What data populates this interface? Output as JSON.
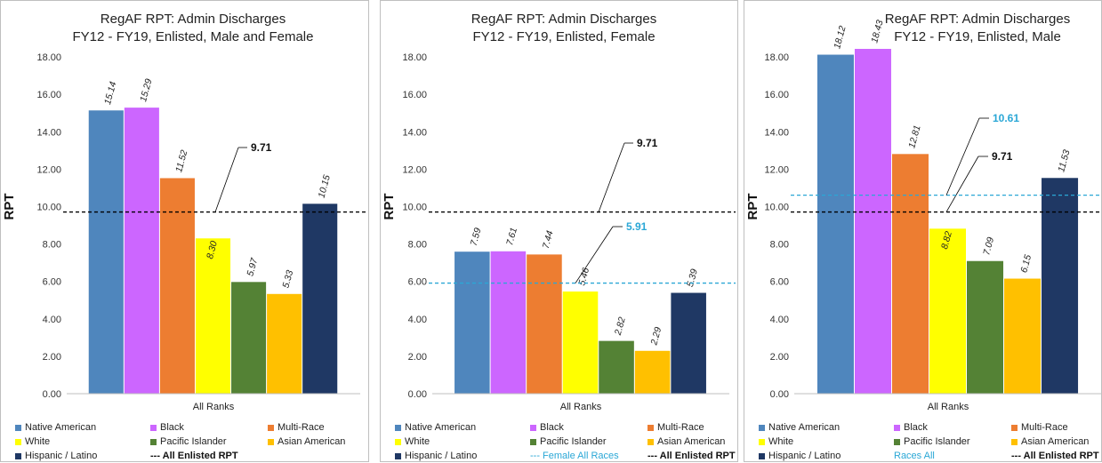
{
  "chart_data": [
    {
      "type": "bar",
      "title": [
        "RegAF RPT: Admin Discharges",
        "FY12 - FY19, Enlisted, Male and Female"
      ],
      "ylabel": "RPT",
      "xlabel": "All Ranks",
      "ylim": [
        0,
        19
      ],
      "yticks": [
        "0.00",
        "2.00",
        "4.00",
        "6.00",
        "8.00",
        "10.00",
        "12.00",
        "14.00",
        "16.00",
        "18.00"
      ],
      "series": [
        {
          "name": "Native American",
          "value": 15.14,
          "label": "15.14",
          "color": "#4f86bd"
        },
        {
          "name": "Black",
          "value": 15.29,
          "label": "15.29",
          "color": "#cc66ff"
        },
        {
          "name": "Multi-Race",
          "value": 11.52,
          "label": "11.52",
          "color": "#ed7d31"
        },
        {
          "name": "White",
          "value": 8.3,
          "label": "8.30",
          "color": "#ffff00"
        },
        {
          "name": "Pacific Islander",
          "value": 5.97,
          "label": "5.97",
          "color": "#548235"
        },
        {
          "name": "Asian American",
          "value": 5.33,
          "label": "5.33",
          "color": "#ffc000"
        },
        {
          "name": "Hispanic / Latino",
          "value": 10.15,
          "label": "10.15",
          "color": "#1f3864"
        }
      ],
      "reference_lines": [
        {
          "value": 9.71,
          "label": "9.71",
          "color": "#000000",
          "legend": "--- All Enlisted RPT"
        }
      ]
    },
    {
      "type": "bar",
      "title": [
        "RegAF RPT: Admin Discharges",
        "FY12 - FY19, Enlisted, Female"
      ],
      "ylabel": "RPT",
      "xlabel": "All Ranks",
      "ylim": [
        0,
        19
      ],
      "yticks": [
        "0.00",
        "2.00",
        "4.00",
        "6.00",
        "8.00",
        "10.00",
        "12.00",
        "14.00",
        "16.00",
        "18.00"
      ],
      "series": [
        {
          "name": "Native American",
          "value": 7.59,
          "label": "7.59",
          "color": "#4f86bd"
        },
        {
          "name": "Black",
          "value": 7.61,
          "label": "7.61",
          "color": "#cc66ff"
        },
        {
          "name": "Multi-Race",
          "value": 7.44,
          "label": "7.44",
          "color": "#ed7d31"
        },
        {
          "name": "White",
          "value": 5.46,
          "label": "5.46",
          "color": "#ffff00"
        },
        {
          "name": "Pacific Islander",
          "value": 2.82,
          "label": "2.82",
          "color": "#548235"
        },
        {
          "name": "Asian American",
          "value": 2.29,
          "label": "2.29",
          "color": "#ffc000"
        },
        {
          "name": "Hispanic / Latino",
          "value": 5.39,
          "label": "5.39",
          "color": "#1f3864"
        }
      ],
      "reference_lines": [
        {
          "value": 9.71,
          "label": "9.71",
          "color": "#000000",
          "legend": "--- All Enlisted RPT"
        },
        {
          "value": 5.91,
          "label": "5.91",
          "color": "#2aa7d6",
          "legend": "--- Female All Races"
        }
      ]
    },
    {
      "type": "bar",
      "title": [
        "RegAF RPT: Admin Discharges",
        "FY12 - FY19, Enlisted, Male"
      ],
      "ylabel": "RPT",
      "xlabel": "All Ranks",
      "ylim": [
        0,
        19
      ],
      "yticks": [
        "0.00",
        "2.00",
        "4.00",
        "6.00",
        "8.00",
        "10.00",
        "12.00",
        "14.00",
        "16.00",
        "18.00"
      ],
      "series": [
        {
          "name": "Native American",
          "value": 18.12,
          "label": "18.12",
          "color": "#4f86bd"
        },
        {
          "name": "Black",
          "value": 18.43,
          "label": "18.43",
          "color": "#cc66ff"
        },
        {
          "name": "Multi-Race",
          "value": 12.81,
          "label": "12.81",
          "color": "#ed7d31"
        },
        {
          "name": "White",
          "value": 8.82,
          "label": "8.82",
          "color": "#ffff00"
        },
        {
          "name": "Pacific Islander",
          "value": 7.09,
          "label": "7.09",
          "color": "#548235"
        },
        {
          "name": "Asian American",
          "value": 6.15,
          "label": "6.15",
          "color": "#ffc000"
        },
        {
          "name": "Hispanic / Latino",
          "value": 11.53,
          "label": "11.53",
          "color": "#1f3864"
        }
      ],
      "reference_lines": [
        {
          "value": 9.71,
          "label": "9.71",
          "color": "#000000",
          "legend": "--- All Enlisted RPT"
        },
        {
          "value": 10.61,
          "label": "10.61",
          "color": "#2aa7d6",
          "legend": "Races All"
        }
      ]
    }
  ]
}
